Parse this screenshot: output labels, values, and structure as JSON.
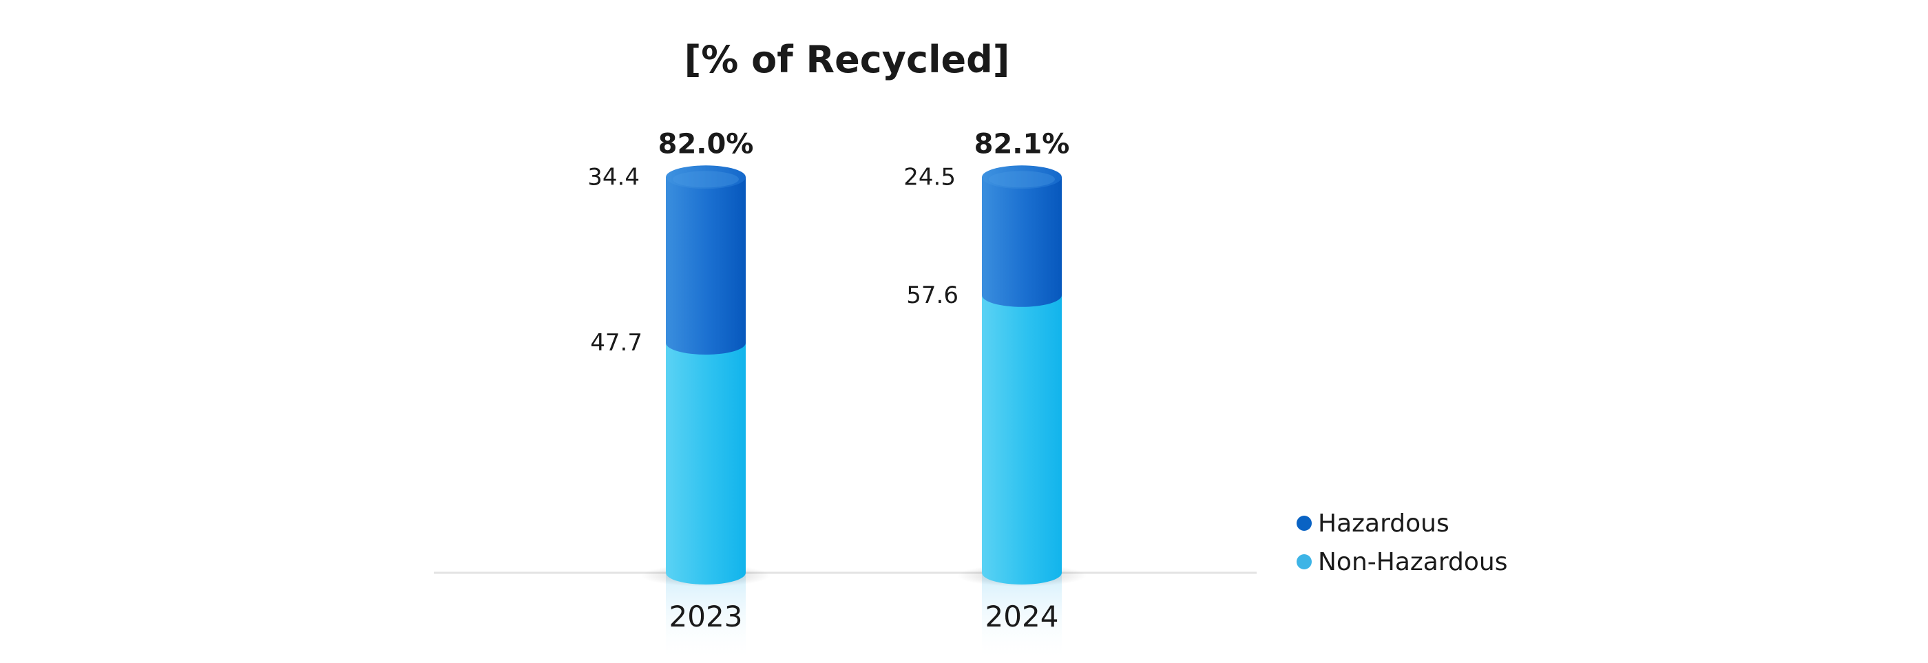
{
  "chart_data": {
    "type": "bar",
    "stacked": true,
    "title": "[% of Recycled]",
    "categories": [
      "2023",
      "2024"
    ],
    "series": [
      {
        "name": "Hazardous",
        "values": [
          34.4,
          24.5
        ],
        "value_labels": [
          "34.4",
          "24.5"
        ],
        "color": "#0a63c4"
      },
      {
        "name": "Non-Hazardous",
        "values": [
          47.7,
          57.6
        ],
        "value_labels": [
          "47.7",
          "57.6"
        ],
        "color": "#3db4e6"
      }
    ],
    "totals": [
      "82.0%",
      "82.1%"
    ],
    "legend_position": "right",
    "grid": false
  }
}
